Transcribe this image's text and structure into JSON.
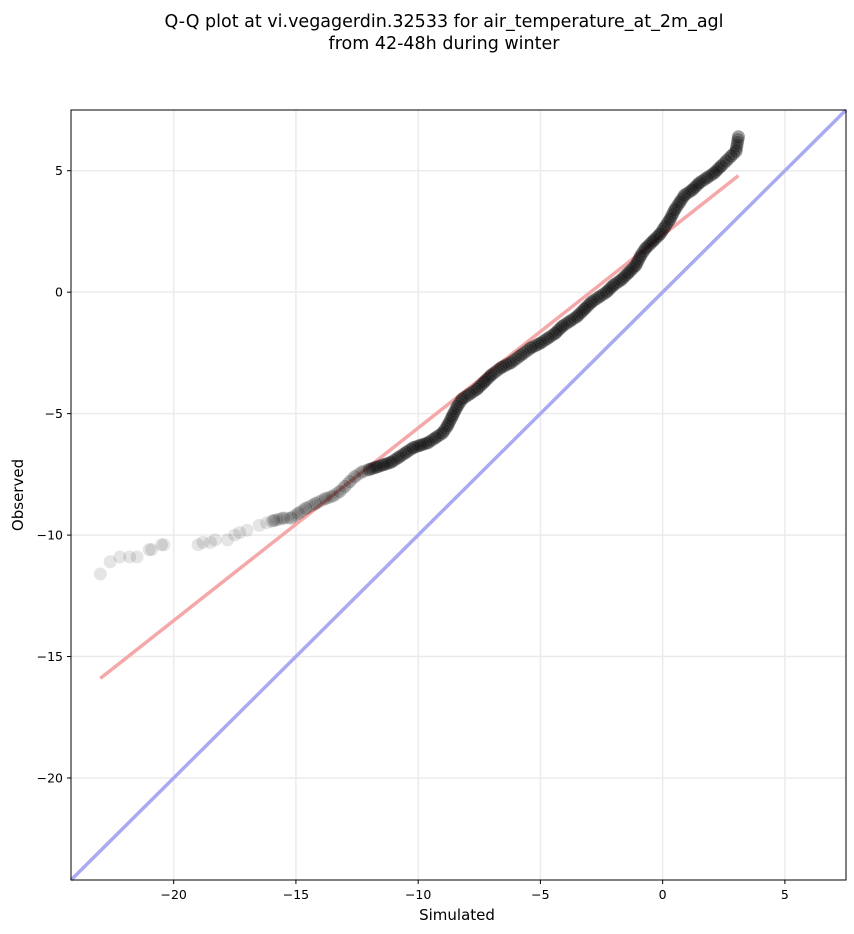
{
  "chart_data": {
    "type": "scatter",
    "title": "Q-Q plot at vi.vegagerdin.32533 for air_temperature_at_2m_agl",
    "subtitle": "from 42-48h during winter",
    "xlabel": "Simulated",
    "ylabel": "Observed",
    "xlim": [
      -24.2,
      7.5
    ],
    "ylim": [
      -24.2,
      7.5
    ],
    "xticks": [
      -20,
      -15,
      -10,
      -5,
      0,
      5
    ],
    "yticks": [
      5,
      0,
      -5,
      -10,
      -15,
      -20
    ],
    "xtick_labels": [
      "−20",
      "−15",
      "−10",
      "−5",
      "0",
      "5"
    ],
    "ytick_labels": [
      "5",
      "0",
      "−5",
      "−10",
      "−15",
      "−20"
    ],
    "grid": true,
    "quantile_points": [
      [
        -23.0,
        -11.6
      ],
      [
        -22.6,
        -11.1
      ],
      [
        -22.2,
        -10.9
      ],
      [
        -21.8,
        -10.9
      ],
      [
        -21.5,
        -10.9
      ],
      [
        -21.0,
        -10.6
      ],
      [
        -20.9,
        -10.6
      ],
      [
        -20.5,
        -10.4
      ],
      [
        -20.4,
        -10.4
      ],
      [
        -19.0,
        -10.4
      ],
      [
        -18.8,
        -10.3
      ],
      [
        -18.5,
        -10.3
      ],
      [
        -18.3,
        -10.2
      ],
      [
        -17.8,
        -10.2
      ],
      [
        -17.5,
        -10.0
      ],
      [
        -17.3,
        -9.9
      ],
      [
        -17.0,
        -9.8
      ],
      [
        -16.5,
        -9.6
      ],
      [
        -16.2,
        -9.5
      ],
      [
        -15.9,
        -9.4
      ],
      [
        -15.5,
        -9.3
      ],
      [
        -15.2,
        -9.3
      ],
      [
        -14.9,
        -9.1
      ],
      [
        -14.6,
        -8.9
      ],
      [
        -14.2,
        -8.7
      ],
      [
        -13.8,
        -8.5
      ],
      [
        -13.5,
        -8.4
      ],
      [
        -13.2,
        -8.2
      ],
      [
        -13.0,
        -8.0
      ],
      [
        -12.8,
        -7.8
      ],
      [
        -12.6,
        -7.6
      ],
      [
        -12.3,
        -7.4
      ],
      [
        -12.0,
        -7.3
      ],
      [
        -11.7,
        -7.2
      ],
      [
        -11.4,
        -7.1
      ],
      [
        -11.1,
        -7.0
      ],
      [
        -10.8,
        -6.8
      ],
      [
        -10.5,
        -6.6
      ],
      [
        -10.2,
        -6.4
      ],
      [
        -9.9,
        -6.3
      ],
      [
        -9.6,
        -6.2
      ],
      [
        -9.3,
        -6.0
      ],
      [
        -9.0,
        -5.8
      ],
      [
        -8.8,
        -5.5
      ],
      [
        -8.6,
        -5.1
      ],
      [
        -8.4,
        -4.7
      ],
      [
        -8.2,
        -4.4
      ],
      [
        -7.9,
        -4.2
      ],
      [
        -7.6,
        -4.0
      ],
      [
        -7.3,
        -3.7
      ],
      [
        -7.0,
        -3.4
      ],
      [
        -6.6,
        -3.1
      ],
      [
        -6.2,
        -2.9
      ],
      [
        -5.8,
        -2.6
      ],
      [
        -5.4,
        -2.3
      ],
      [
        -5.0,
        -2.1
      ],
      [
        -4.7,
        -1.9
      ],
      [
        -4.4,
        -1.7
      ],
      [
        -4.1,
        -1.4
      ],
      [
        -3.8,
        -1.2
      ],
      [
        -3.5,
        -1.0
      ],
      [
        -3.2,
        -0.7
      ],
      [
        -2.9,
        -0.4
      ],
      [
        -2.6,
        -0.2
      ],
      [
        -2.3,
        0.0
      ],
      [
        -2.0,
        0.3
      ],
      [
        -1.7,
        0.5
      ],
      [
        -1.4,
        0.8
      ],
      [
        -1.1,
        1.1
      ],
      [
        -0.9,
        1.5
      ],
      [
        -0.7,
        1.8
      ],
      [
        -0.4,
        2.1
      ],
      [
        -0.1,
        2.4
      ],
      [
        0.1,
        2.7
      ],
      [
        0.3,
        3.0
      ],
      [
        0.5,
        3.4
      ],
      [
        0.7,
        3.7
      ],
      [
        0.9,
        4.0
      ],
      [
        1.2,
        4.2
      ],
      [
        1.5,
        4.5
      ],
      [
        1.8,
        4.7
      ],
      [
        2.1,
        4.9
      ],
      [
        2.4,
        5.2
      ],
      [
        2.6,
        5.4
      ],
      [
        2.8,
        5.6
      ],
      [
        3.0,
        5.8
      ],
      [
        3.1,
        6.4
      ]
    ],
    "reference_line_1to1": {
      "from": [
        -24.2,
        -24.2
      ],
      "to": [
        7.5,
        7.5
      ],
      "color": "#aaaaf2"
    },
    "fit_line": {
      "from": [
        -23.0,
        -15.9
      ],
      "to": [
        3.1,
        4.8
      ],
      "color": "#f5a8a8"
    },
    "point_color": "#000000"
  }
}
